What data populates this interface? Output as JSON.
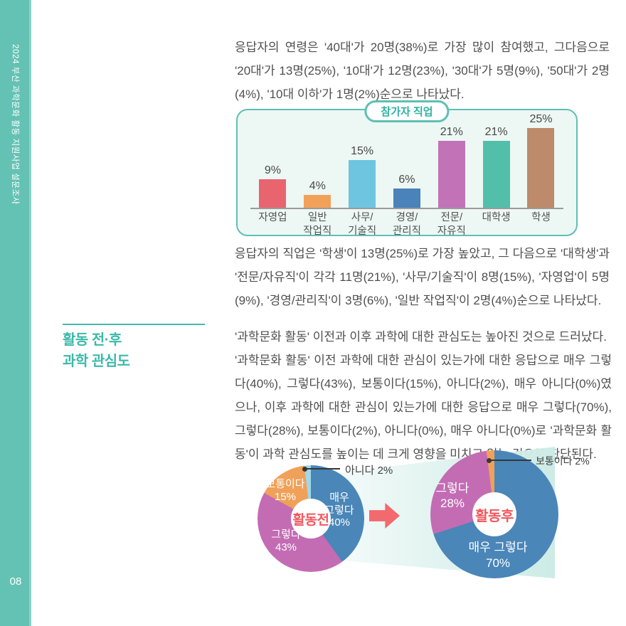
{
  "accent": {
    "teal": "#5fc0b1",
    "sidebar_teal": "#64c2b4",
    "heading_teal": "#3cb9aa",
    "red": "#f1585e",
    "arrow_red": "#f2696e",
    "text_gray": "#4f4f4f"
  },
  "sidebar": {
    "title": "2024 부산 과학문화 활동 지원사업 설문조사",
    "page_number": "08"
  },
  "paragraphs": {
    "p1": "응답자의 연령은 '40대'가 20명(38%)로 가장 많이 참여했고, 그다음으로 '20대'가 13명(25%), '10대'가 12명(23%), '30대'가 5명(9%), '50대'가 2명(4%), '10대 이하'가 1명(2%)순으로 나타났다.",
    "p2": "응답자의 직업은 '학생'이 13명(25%)로 가장 높았고, 그 다음으로 '대학생'과 '전문/자유직'이 각각 11명(21%), '사무/기술직'이 8명(15%), '자영업'이 5명(9%), '경영/관리직'이 3명(6%), '일반 작업직'이 2명(4%)순으로 나타났다.",
    "p3": "'과학문화 활동' 이전과 이후 과학에 대한 관심도는 높아진 것으로 드러났다.\n'과학문화 활동' 이전 과학에 대한 관심이 있는가에 대한 응답으로 매우 그렇다(40%), 그렇다(43%), 보통이다(15%), 아니다(2%), 매우 아니다(0%)였으나, 이후 과학에 대한 관심이 있는가에 대한 응답으로 매우 그렇다(70%), 그렇다(28%), 보통이다(2%), 아니다(0%), 매우 아니다(0%)로 '과학문화 활동'이 과학 관심도를 높이는 데 크게 영향을 미치고 있는 것으로 판단된다."
  },
  "section": {
    "title": "활동 전·후\n과학 관심도"
  },
  "chart_data": [
    {
      "type": "bar",
      "title": "참가자 직업",
      "categories": [
        "자영업",
        "일반\n작업직",
        "사무/\n기술직",
        "경영/\n관리직",
        "전문/\n자유직",
        "대학생",
        "학생"
      ],
      "values": [
        9,
        4,
        15,
        6,
        21,
        21,
        25
      ],
      "value_labels": [
        "9%",
        "4%",
        "15%",
        "6%",
        "21%",
        "21%",
        "25%"
      ],
      "colors": [
        "#e8646e",
        "#f2a159",
        "#6ec5e0",
        "#4a82ba",
        "#c273b8",
        "#52bfab",
        "#bd8a6b"
      ],
      "ylim": [
        0,
        27
      ],
      "unit": "%",
      "grid": "off",
      "legend": "none"
    },
    {
      "type": "pie",
      "center_label": "활동전",
      "slices": [
        {
          "name": "매우 그렇다",
          "value": 40,
          "color": "#4a86b8",
          "label": "매우\n그렇다\n40%"
        },
        {
          "name": "그렇다",
          "value": 43,
          "color": "#c36cb4",
          "label": "그렇다\n43%"
        },
        {
          "name": "보통이다",
          "value": 15,
          "color": "#f0a159",
          "label": "보통이다\n15%"
        },
        {
          "name": "아니다",
          "value": 2,
          "color": "#a0d8e9",
          "label": "아니다 2%"
        }
      ],
      "callout_label": "아니다 2%",
      "donut": true,
      "start_angle_deg": 0,
      "direction": "clockwise"
    },
    {
      "type": "pie",
      "center_label": "활동후",
      "slices": [
        {
          "name": "매우 그렇다",
          "value": 70,
          "color": "#4a86b8",
          "label": "매우 그렇다\n70%"
        },
        {
          "name": "그렇다",
          "value": 28,
          "color": "#c36cb4",
          "label": "그렇다\n28%"
        },
        {
          "name": "보통이다",
          "value": 2,
          "color": "#f0a159",
          "label": "보통이다 2%"
        }
      ],
      "callout_label": "보통이다 2%",
      "donut": true,
      "start_angle_deg": 0,
      "direction": "clockwise"
    }
  ]
}
